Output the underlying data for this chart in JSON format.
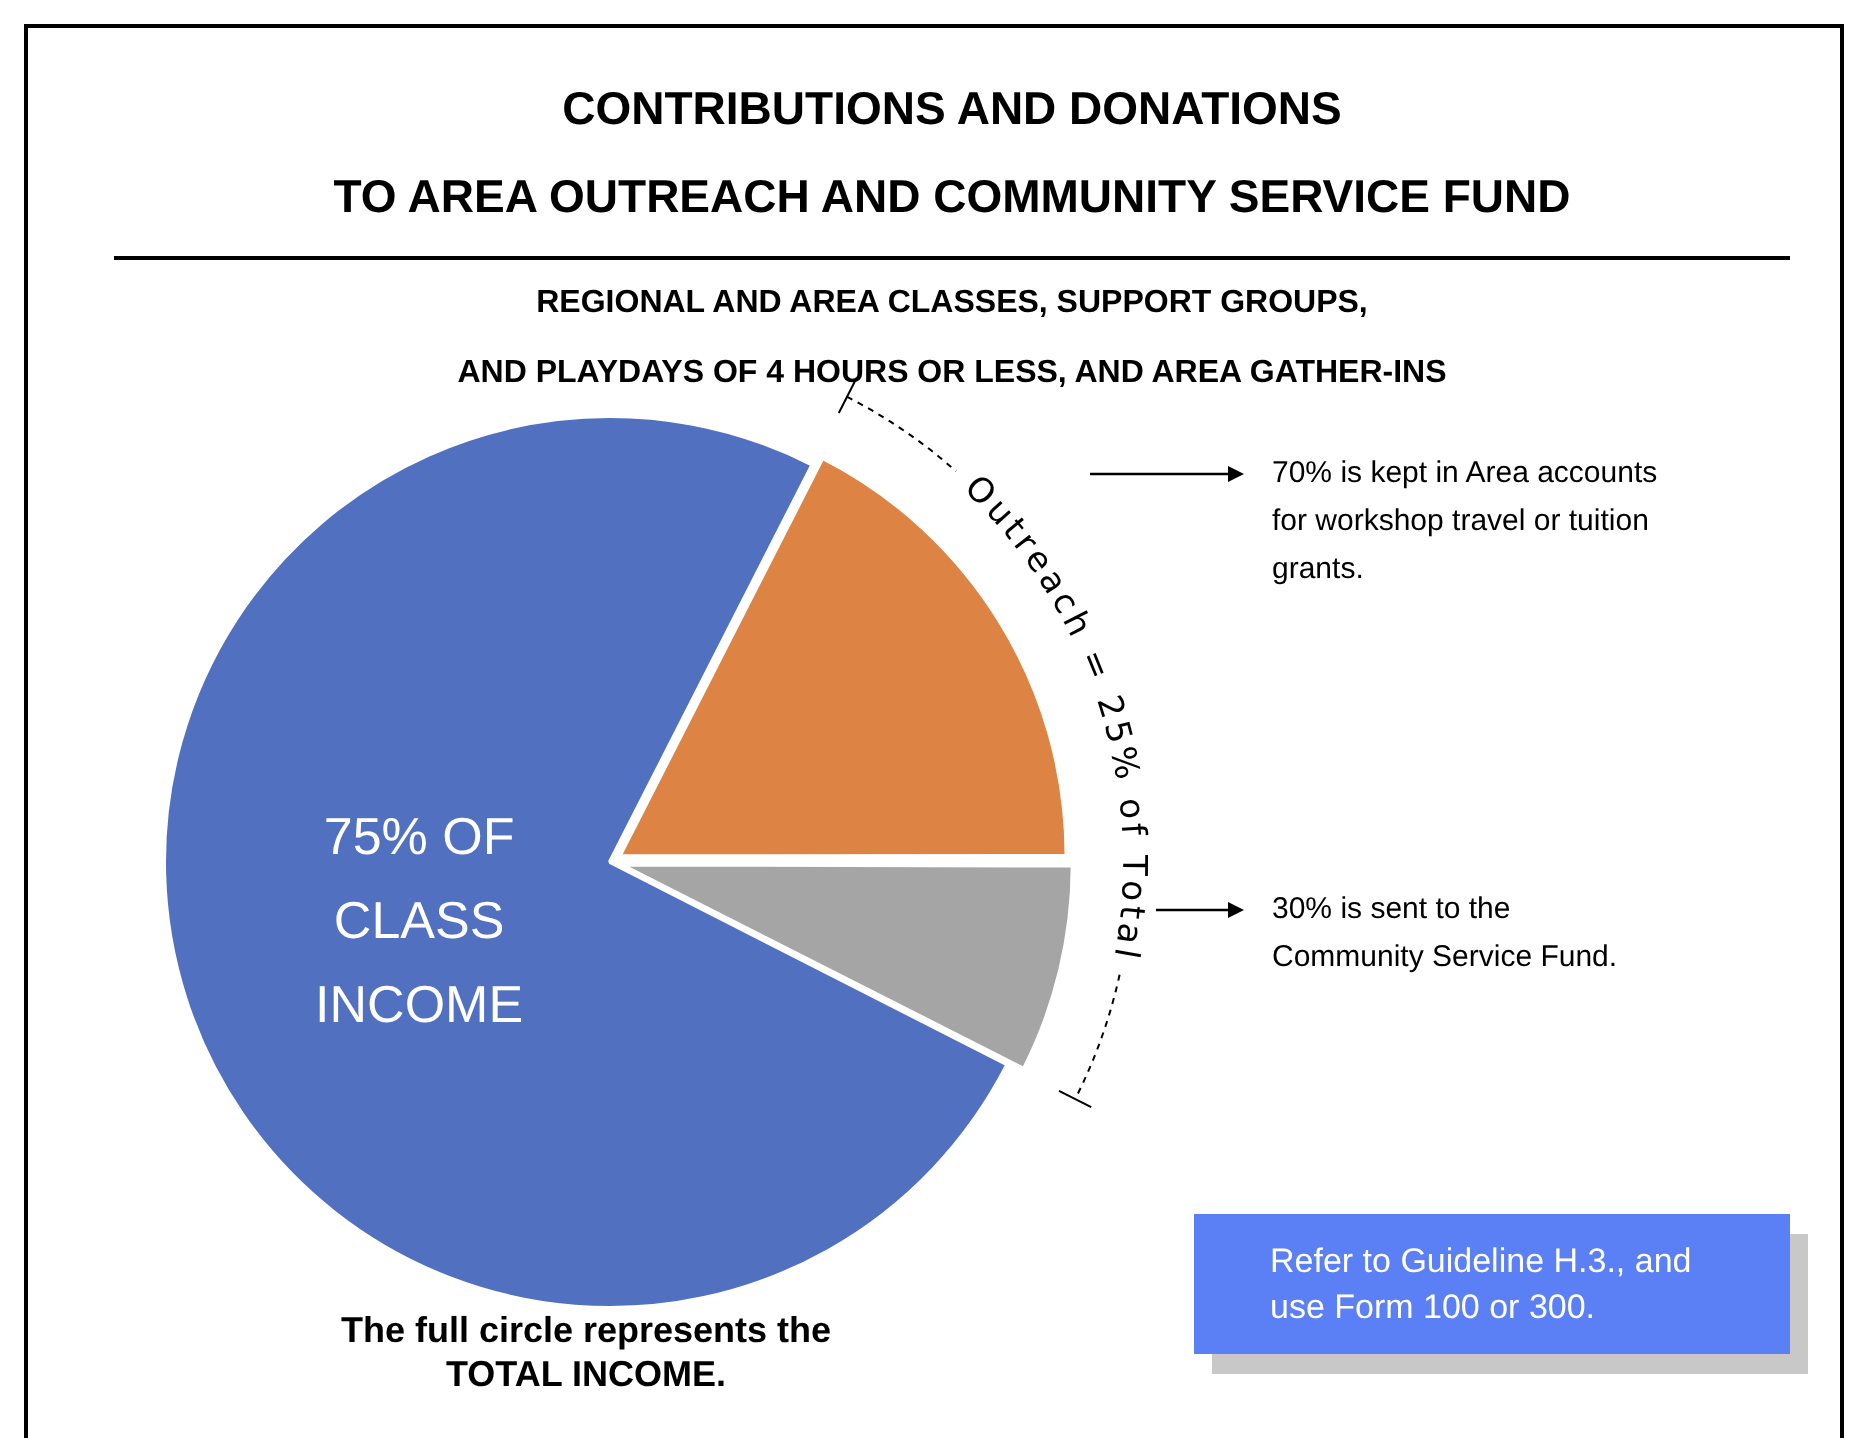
{
  "chart_data": {
    "type": "pie",
    "title": "CONTRIBUTIONS AND DONATIONS\nTO AREA OUTREACH AND COMMUNITY SERVICE FUND",
    "subtitle": "REGIONAL AND AREA CLASSES, SUPPORT GROUPS,\nAND PLAYDAYS OF 4 HOURS OR LESS, AND AREA GATHER-INS",
    "categories": [
      null,
      null,
      "75% OF CLASS INCOME"
    ],
    "values": [
      17.5,
      7.5,
      75
    ],
    "colors": [
      "#dd8444",
      "#a5a5a5",
      "#5170c0"
    ],
    "legend": false,
    "annotations": [
      "Outreach = 25% of Total",
      "70% is kept in Area accounts for workshop travel or tuition grants.",
      "30% is sent to the Community Service Fund.",
      "The full circle represents the TOTAL INCOME.",
      "Refer to Guideline H.3., and use Form 100 or 300."
    ]
  }
}
